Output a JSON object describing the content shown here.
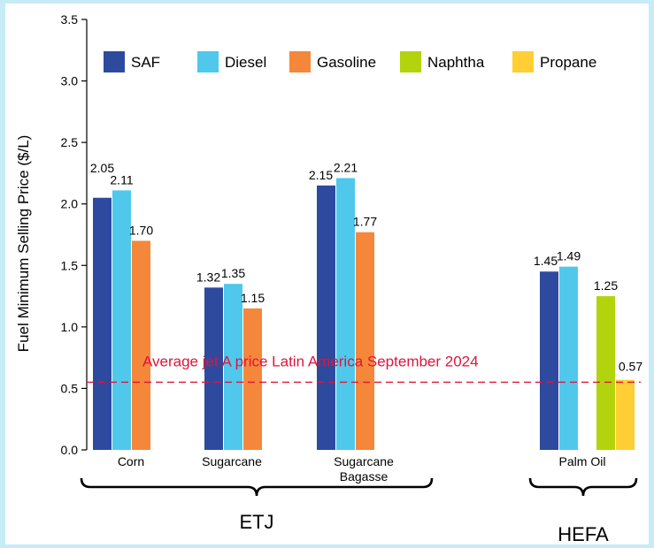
{
  "chart_data": {
    "type": "bar",
    "ylabel": "Fuel Minimum Selling Price ($/L)",
    "ylim": [
      0,
      3.5
    ],
    "yticks": [
      "0.0",
      "0.5",
      "1.0",
      "1.5",
      "2.0",
      "2.5",
      "3.0",
      "3.5"
    ],
    "legend_position": "top",
    "series": [
      {
        "name": "SAF",
        "color": "#2e4a9e"
      },
      {
        "name": "Diesel",
        "color": "#4fc8ec"
      },
      {
        "name": "Gasoline",
        "color": "#f5873a"
      },
      {
        "name": "Naphtha",
        "color": "#b3d40c"
      },
      {
        "name": "Propane",
        "color": "#ffcf33"
      }
    ],
    "categories": [
      {
        "name": "Corn",
        "bars": [
          {
            "series": "SAF",
            "value": 2.05,
            "label": "2.05"
          },
          {
            "series": "Diesel",
            "value": 2.11,
            "label": "2.11"
          },
          {
            "series": "Gasoline",
            "value": 1.7,
            "label": "1.70"
          }
        ]
      },
      {
        "name": "Sugarcane",
        "bars": [
          {
            "series": "SAF",
            "value": 1.32,
            "label": "1.32"
          },
          {
            "series": "Diesel",
            "value": 1.35,
            "label": "1.35"
          },
          {
            "series": "Gasoline",
            "value": 1.15,
            "label": "1.15"
          }
        ]
      },
      {
        "name": "Sugarcane Bagasse",
        "name_lines": [
          "Sugarcane",
          "Bagasse"
        ],
        "bars": [
          {
            "series": "SAF",
            "value": 2.15,
            "label": "2.15"
          },
          {
            "series": "Diesel",
            "value": 2.21,
            "label": "2.21"
          },
          {
            "series": "Gasoline",
            "value": 1.77,
            "label": "1.77"
          }
        ]
      },
      {
        "name": "Palm Oil",
        "bars": [
          {
            "series": "SAF",
            "value": 1.45,
            "label": "1.45"
          },
          {
            "series": "Diesel",
            "value": 1.49,
            "label": "1.49"
          },
          {
            "series": "Naphtha",
            "value": 1.25,
            "label": "1.25"
          },
          {
            "series": "Propane",
            "value": 0.57,
            "label": "0.57"
          }
        ]
      }
    ],
    "reference_line": {
      "value": 0.55,
      "label": "Average jet A price Latin America September 2024",
      "color": "#e0143c"
    },
    "groups": [
      {
        "label": "ETJ",
        "categories": [
          "Corn",
          "Sugarcane",
          "Sugarcane Bagasse"
        ]
      },
      {
        "label": "HEFA",
        "categories": [
          "Palm Oil"
        ]
      }
    ]
  }
}
